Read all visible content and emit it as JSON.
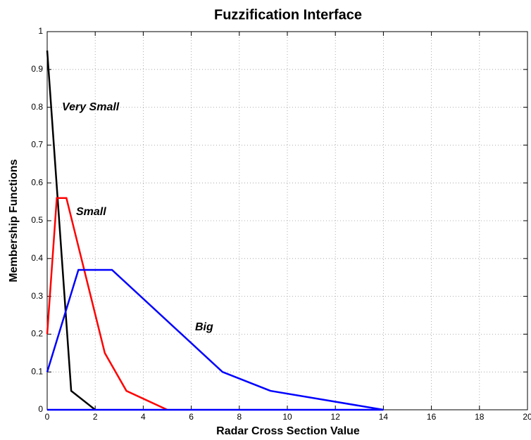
{
  "chart_data": {
    "type": "line",
    "title": "Fuzzification Interface",
    "xlabel": "Radar Cross Section Value",
    "ylabel": "Membership Functions",
    "xlim": [
      0,
      20
    ],
    "ylim": [
      0,
      1
    ],
    "xticks": [
      0,
      2,
      4,
      6,
      8,
      10,
      12,
      14,
      16,
      18,
      20
    ],
    "yticks": [
      0,
      0.1,
      0.2,
      0.3,
      0.4,
      0.5,
      0.6,
      0.7,
      0.8,
      0.9,
      1
    ],
    "grid": true,
    "series": [
      {
        "color": "#000000",
        "x": [
          0,
          1,
          2
        ],
        "values": [
          0.95,
          0.05,
          0
        ]
      },
      {
        "color": "#ff0000",
        "x": [
          0,
          0.4,
          0.8,
          2.4,
          3.3,
          5
        ],
        "values": [
          0.2,
          0.56,
          0.56,
          0.15,
          0.05,
          0
        ]
      },
      {
        "color": "#0000ff",
        "x": [
          0,
          1.3,
          2.7,
          7.3,
          9.3,
          14,
          0
        ],
        "values": [
          0.1,
          0.37,
          0.37,
          0.1,
          0.05,
          0,
          0
        ]
      }
    ],
    "annotations": [
      "Very Small",
      "Small",
      "Big"
    ]
  }
}
